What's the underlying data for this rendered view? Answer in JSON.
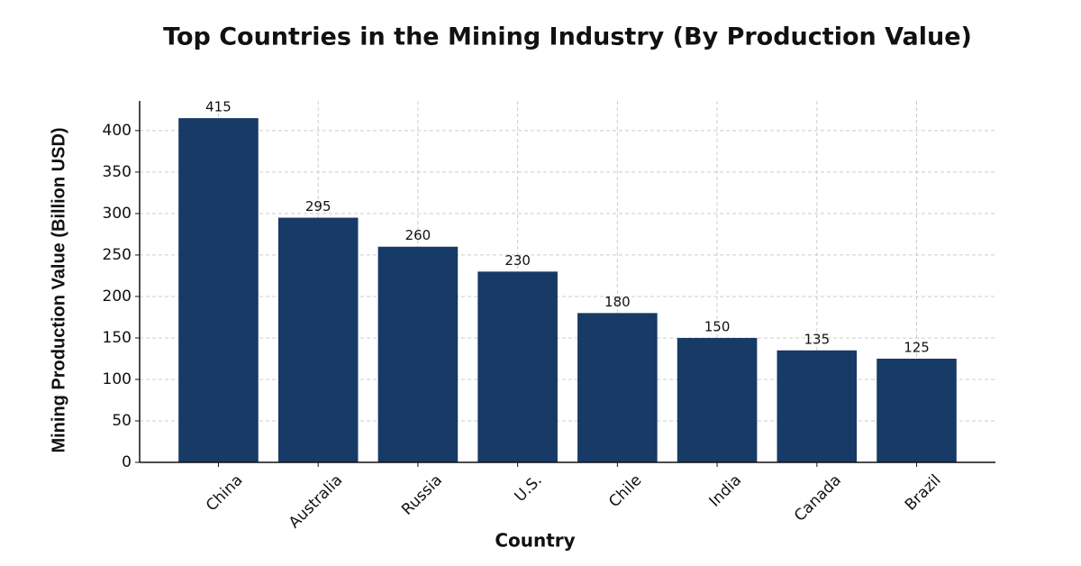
{
  "chart_data": {
    "type": "bar",
    "title": "Top Countries in the Mining Industry (By Production Value)",
    "x_label": "Country",
    "y_label": "Mining Production Value (Billion USD)",
    "categories": [
      "China",
      "Australia",
      "Russia",
      "U.S.",
      "Chile",
      "India",
      "Canada",
      "Brazil"
    ],
    "values": [
      415,
      295,
      260,
      230,
      180,
      150,
      135,
      125
    ],
    "color": "#173a66",
    "ylim": [
      0,
      435.75
    ],
    "yticks": [
      0,
      50,
      100,
      150,
      200,
      250,
      300,
      350,
      400
    ],
    "grid": true
  }
}
